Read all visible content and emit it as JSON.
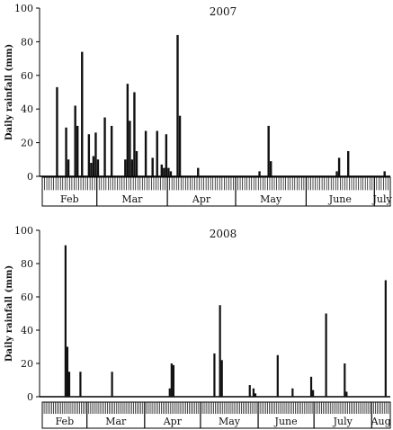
{
  "chart_data": [
    {
      "type": "bar",
      "title": "2007",
      "ylabel": "Daily rainfall (mm)",
      "xlabel": "",
      "ylim": [
        0,
        100
      ],
      "yticks": [
        0,
        20,
        40,
        60,
        80,
        100
      ],
      "x_start_day": 36,
      "x_end_day": 188,
      "months": [
        {
          "label": "Feb",
          "start": 36,
          "end": 59
        },
        {
          "label": "Mar",
          "start": 60,
          "end": 90
        },
        {
          "label": "Apr",
          "start": 91,
          "end": 120
        },
        {
          "label": "May",
          "start": 121,
          "end": 151
        },
        {
          "label": "June",
          "start": 152,
          "end": 181
        },
        {
          "label": "July",
          "start": 182,
          "end": 188
        }
      ],
      "series": [
        {
          "x": [
            42,
            46,
            47,
            50,
            51,
            53,
            56,
            57,
            58,
            59,
            60,
            63,
            66,
            72,
            73,
            74,
            75,
            76,
            77,
            81,
            84,
            86,
            88,
            89,
            90,
            91,
            92,
            95,
            96,
            104,
            131,
            135,
            136,
            165,
            166,
            170,
            186
          ],
          "y": [
            53,
            29,
            10,
            42,
            30,
            74,
            25,
            8,
            12,
            26,
            10,
            35,
            30,
            10,
            55,
            33,
            10,
            50,
            15,
            27,
            11,
            27,
            7,
            5,
            25,
            5,
            3,
            84,
            36,
            5,
            3,
            30,
            9,
            3,
            11,
            15,
            3
          ]
        }
      ]
    },
    {
      "type": "bar",
      "title": "2008",
      "ylabel": "Daily rainfall (mm)",
      "xlabel": "",
      "ylim": [
        0,
        100
      ],
      "yticks": [
        0,
        20,
        40,
        60,
        80,
        100
      ],
      "x_start_day": 36,
      "x_end_day": 222,
      "months": [
        {
          "label": "Feb",
          "start": 36,
          "end": 59
        },
        {
          "label": "Mar",
          "start": 60,
          "end": 90
        },
        {
          "label": "Apr",
          "start": 91,
          "end": 120
        },
        {
          "label": "May",
          "start": 121,
          "end": 151
        },
        {
          "label": "June",
          "start": 152,
          "end": 181
        },
        {
          "label": "July",
          "start": 182,
          "end": 212
        },
        {
          "label": "Aug",
          "start": 213,
          "end": 222
        }
      ],
      "series": [
        {
          "x": [
            48,
            49,
            50,
            56,
            73,
            104,
            105,
            106,
            128,
            131,
            132,
            147,
            149,
            150,
            162,
            170,
            180,
            181,
            188,
            198,
            199,
            220
          ],
          "y": [
            91,
            30,
            15,
            15,
            15,
            5,
            20,
            19,
            26,
            55,
            22,
            7,
            5,
            2,
            25,
            5,
            12,
            4,
            50,
            20,
            3,
            70
          ]
        }
      ]
    }
  ]
}
